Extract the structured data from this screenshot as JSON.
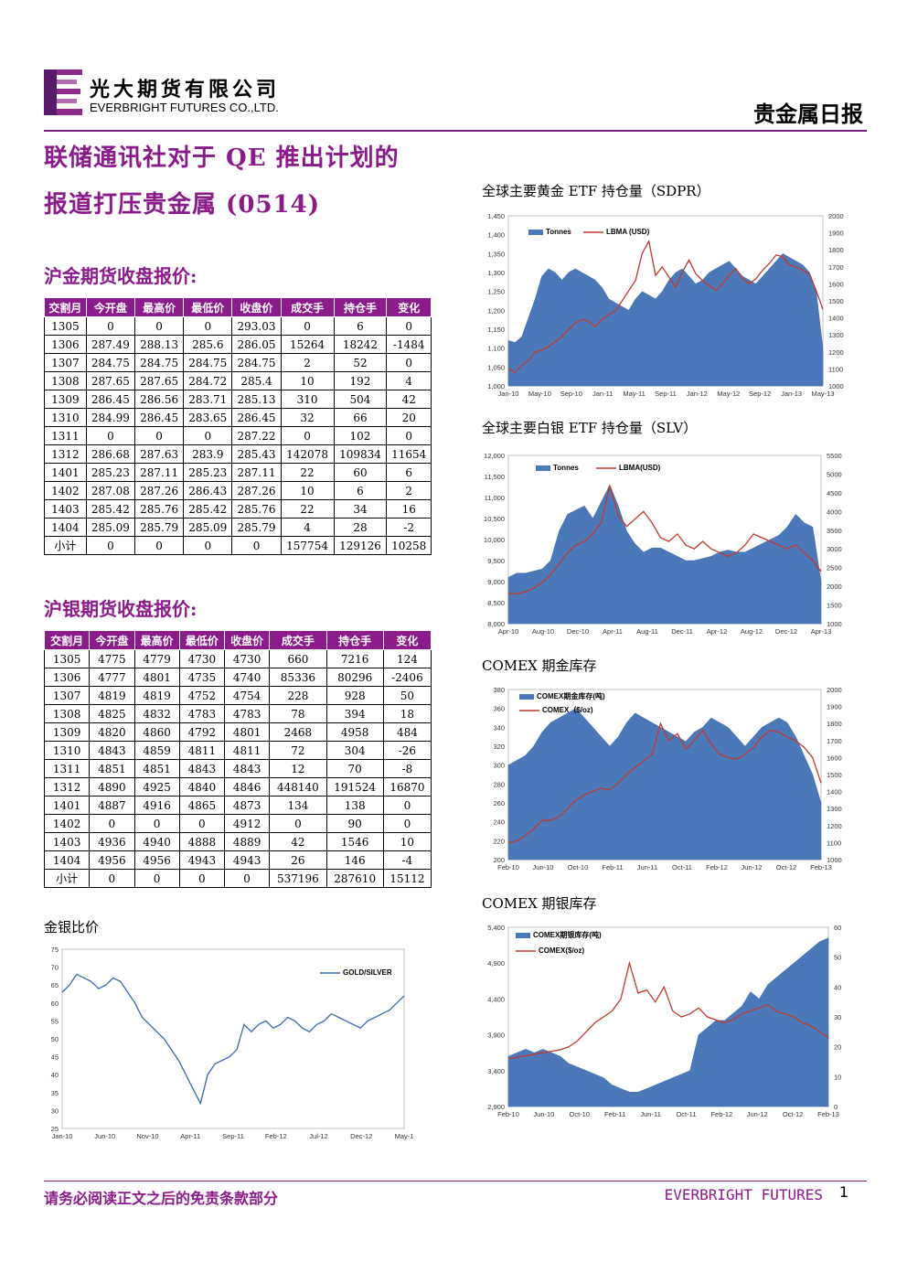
{
  "header": {
    "company_cn": "光大期货有限公司",
    "company_en": "EVERBRIGHT FUTURES CO.,LTD.",
    "report_type": "贵金属日报"
  },
  "title": {
    "line1": "联储通讯社对于 QE 推出计划的",
    "line2": "报道打压贵金属 (0514)"
  },
  "gold_table": {
    "heading": "沪金期货收盘报价:",
    "columns": [
      "交割月",
      "今开盘",
      "最高价",
      "最低价",
      "收盘价",
      "成交手",
      "持仓手",
      "变化"
    ],
    "rows": [
      [
        "1305",
        "0",
        "0",
        "0",
        "293.03",
        "0",
        "6",
        "0"
      ],
      [
        "1306",
        "287.49",
        "288.13",
        "285.6",
        "286.05",
        "15264",
        "18242",
        "-1484"
      ],
      [
        "1307",
        "284.75",
        "284.75",
        "284.75",
        "284.75",
        "2",
        "52",
        "0"
      ],
      [
        "1308",
        "287.65",
        "287.65",
        "284.72",
        "285.4",
        "10",
        "192",
        "4"
      ],
      [
        "1309",
        "286.45",
        "286.56",
        "283.71",
        "285.13",
        "310",
        "504",
        "42"
      ],
      [
        "1310",
        "284.99",
        "286.45",
        "283.65",
        "286.45",
        "32",
        "66",
        "20"
      ],
      [
        "1311",
        "0",
        "0",
        "0",
        "287.22",
        "0",
        "102",
        "0"
      ],
      [
        "1312",
        "286.68",
        "287.63",
        "283.9",
        "285.43",
        "142078",
        "109834",
        "11654"
      ],
      [
        "1401",
        "285.23",
        "287.11",
        "285.23",
        "287.11",
        "22",
        "60",
        "6"
      ],
      [
        "1402",
        "287.08",
        "287.26",
        "286.43",
        "287.26",
        "10",
        "6",
        "2"
      ],
      [
        "1403",
        "285.42",
        "285.76",
        "285.42",
        "285.76",
        "22",
        "34",
        "16"
      ],
      [
        "1404",
        "285.09",
        "285.79",
        "285.09",
        "285.79",
        "4",
        "28",
        "-2"
      ],
      [
        "小计",
        "0",
        "0",
        "0",
        "0",
        "157754",
        "129126",
        "10258"
      ]
    ]
  },
  "silver_table": {
    "heading": "沪银期货收盘报价:",
    "columns": [
      "交割月",
      "今开盘",
      "最高价",
      "最低价",
      "收盘价",
      "成交手",
      "持仓手",
      "变化"
    ],
    "rows": [
      [
        "1305",
        "4775",
        "4779",
        "4730",
        "4730",
        "660",
        "7216",
        "124"
      ],
      [
        "1306",
        "4777",
        "4801",
        "4735",
        "4740",
        "85336",
        "80296",
        "-2406"
      ],
      [
        "1307",
        "4819",
        "4819",
        "4752",
        "4754",
        "228",
        "928",
        "50"
      ],
      [
        "1308",
        "4825",
        "4832",
        "4783",
        "4783",
        "78",
        "394",
        "18"
      ],
      [
        "1309",
        "4820",
        "4860",
        "4792",
        "4801",
        "2468",
        "4958",
        "484"
      ],
      [
        "1310",
        "4843",
        "4859",
        "4811",
        "4811",
        "72",
        "304",
        "-26"
      ],
      [
        "1311",
        "4851",
        "4851",
        "4843",
        "4843",
        "12",
        "70",
        "-8"
      ],
      [
        "1312",
        "4890",
        "4925",
        "4840",
        "4846",
        "448140",
        "191524",
        "16870"
      ],
      [
        "1401",
        "4887",
        "4916",
        "4865",
        "4873",
        "134",
        "138",
        "0"
      ],
      [
        "1402",
        "0",
        "0",
        "0",
        "4912",
        "0",
        "90",
        "0"
      ],
      [
        "1403",
        "4936",
        "4940",
        "4888",
        "4889",
        "42",
        "1546",
        "10"
      ],
      [
        "1404",
        "4956",
        "4956",
        "4943",
        "4943",
        "26",
        "146",
        "-4"
      ],
      [
        "小计",
        "0",
        "0",
        "0",
        "0",
        "537196",
        "287610",
        "15112"
      ]
    ]
  },
  "chart_data": [
    {
      "id": "sdpr",
      "type": "area",
      "title": "全球主要黄金 ETF 持仓量（SDPR）",
      "x_ticks": [
        "Jan-10",
        "May-10",
        "Sep-10",
        "Jan-11",
        "May-11",
        "Sep-11",
        "Jan-12",
        "May-12",
        "Sep-12",
        "Jan-13",
        "May-13"
      ],
      "y_left": [
        1000,
        1050,
        1100,
        1150,
        1200,
        1250,
        1300,
        1350,
        1400,
        1450
      ],
      "y_right": [
        1000,
        1100,
        1200,
        1300,
        1400,
        1500,
        1600,
        1700,
        1800,
        1900,
        2000
      ],
      "series": [
        {
          "name": "Tonnes",
          "axis": "left",
          "values": [
            1120,
            1115,
            1130,
            1180,
            1230,
            1290,
            1310,
            1300,
            1280,
            1300,
            1310,
            1300,
            1290,
            1280,
            1260,
            1230,
            1220,
            1210,
            1200,
            1230,
            1250,
            1240,
            1230,
            1250,
            1280,
            1300,
            1310,
            1290,
            1270,
            1280,
            1300,
            1310,
            1320,
            1330,
            1310,
            1290,
            1280,
            1270,
            1290,
            1310,
            1330,
            1350,
            1340,
            1330,
            1320,
            1300,
            1250,
            1100
          ]
        },
        {
          "name": "LBMA (USD)",
          "axis": "right",
          "values": [
            1100,
            1080,
            1120,
            1150,
            1200,
            1210,
            1230,
            1260,
            1290,
            1330,
            1370,
            1390,
            1380,
            1350,
            1390,
            1420,
            1440,
            1500,
            1560,
            1620,
            1780,
            1850,
            1650,
            1700,
            1640,
            1580,
            1670,
            1740,
            1660,
            1620,
            1590,
            1560,
            1600,
            1650,
            1690,
            1630,
            1600,
            1630,
            1680,
            1720,
            1770,
            1760,
            1710,
            1700,
            1680,
            1660,
            1560,
            1450
          ]
        }
      ]
    },
    {
      "id": "slv",
      "type": "area",
      "title": "全球主要白银 ETF 持仓量（SLV）",
      "x_ticks": [
        "Apr-10",
        "Aug-10",
        "Dec-10",
        "Apr-11",
        "Aug-11",
        "Dec-11",
        "Apr-12",
        "Aug-12",
        "Dec-12",
        "Apr-13"
      ],
      "y_left": [
        8000,
        8500,
        9000,
        9500,
        10000,
        10500,
        11000,
        11500,
        12000
      ],
      "y_right": [
        1000,
        1500,
        2000,
        2500,
        3000,
        3500,
        4000,
        4500,
        5000,
        5500
      ],
      "series": [
        {
          "name": "Tonnes",
          "axis": "left",
          "values": [
            9100,
            9200,
            9200,
            9250,
            9300,
            9500,
            10200,
            10600,
            10700,
            10800,
            10500,
            10900,
            11300,
            10800,
            10200,
            9900,
            9700,
            9800,
            9800,
            9700,
            9600,
            9500,
            9500,
            9550,
            9600,
            9700,
            9750,
            9700,
            9700,
            9800,
            9900,
            10000,
            10100,
            10300,
            10600,
            10400,
            10300,
            9000
          ]
        },
        {
          "name": "LBMA(USD)",
          "axis": "right",
          "values": [
            1800,
            1800,
            1850,
            1950,
            2100,
            2300,
            2600,
            2900,
            3100,
            3200,
            3400,
            3700,
            4700,
            3900,
            3600,
            3800,
            4000,
            3700,
            3300,
            3200,
            3400,
            3100,
            3000,
            3200,
            3000,
            2900,
            2800,
            2900,
            3100,
            3400,
            3300,
            3200,
            3100,
            3000,
            3100,
            2900,
            2700,
            2400
          ]
        }
      ]
    },
    {
      "id": "comex_gold",
      "type": "area",
      "title": "COMEX 期金库存",
      "x_ticks": [
        "Feb-10",
        "Jun-10",
        "Oct-10",
        "Feb-11",
        "Jun-11",
        "Oct-11",
        "Feb-12",
        "Jun-12",
        "Oct-12",
        "Feb-13"
      ],
      "y_left": [
        200,
        220,
        240,
        260,
        280,
        300,
        320,
        340,
        360,
        380
      ],
      "y_right": [
        1000,
        1100,
        1200,
        1300,
        1400,
        1500,
        1600,
        1700,
        1800,
        1900,
        2000
      ],
      "series": [
        {
          "name": "COMEX期金库存(吨)",
          "axis": "left",
          "values": [
            300,
            305,
            310,
            320,
            335,
            345,
            350,
            355,
            360,
            350,
            340,
            330,
            320,
            330,
            345,
            355,
            350,
            345,
            340,
            335,
            330,
            325,
            335,
            340,
            350,
            345,
            340,
            330,
            320,
            330,
            340,
            345,
            350,
            345,
            330,
            310,
            290,
            260
          ]
        },
        {
          "name": "COMEX（$/oz)",
          "axis": "right",
          "values": [
            1100,
            1110,
            1140,
            1180,
            1230,
            1230,
            1250,
            1300,
            1350,
            1380,
            1400,
            1420,
            1410,
            1450,
            1500,
            1540,
            1580,
            1620,
            1800,
            1700,
            1740,
            1650,
            1700,
            1760,
            1680,
            1620,
            1600,
            1590,
            1620,
            1660,
            1720,
            1760,
            1750,
            1720,
            1700,
            1660,
            1600,
            1450
          ]
        }
      ]
    },
    {
      "id": "comex_silver",
      "type": "area",
      "title": "COMEX 期银库存",
      "x_ticks": [
        "Feb-10",
        "Jun-10",
        "Oct-10",
        "Feb-11",
        "Jun-11",
        "Oct-11",
        "Feb-12",
        "Jun-12",
        "Oct-12",
        "Feb-13"
      ],
      "y_left": [
        2900,
        3400,
        3900,
        4400,
        4900,
        5400
      ],
      "y_right": [
        0,
        10,
        20,
        30,
        40,
        50,
        60
      ],
      "series": [
        {
          "name": "COMEX期银库存(吨)",
          "axis": "left",
          "values": [
            3600,
            3650,
            3700,
            3650,
            3700,
            3650,
            3600,
            3500,
            3450,
            3400,
            3350,
            3300,
            3200,
            3150,
            3100,
            3100,
            3150,
            3200,
            3250,
            3300,
            3350,
            3400,
            3900,
            4000,
            4100,
            4100,
            4200,
            4300,
            4500,
            4400,
            4600,
            4700,
            4800,
            4900,
            5000,
            5100,
            5200,
            5250
          ]
        },
        {
          "name": "COMEX($/oz)",
          "axis": "right",
          "values": [
            16,
            16.5,
            17,
            17.5,
            18,
            18.5,
            19,
            20,
            22,
            25,
            28,
            30,
            32,
            36,
            48,
            38,
            39,
            35,
            40,
            32,
            30,
            31,
            33,
            30,
            29,
            28,
            29,
            31,
            32,
            33,
            34,
            32,
            31,
            30,
            28,
            27,
            25,
            23
          ]
        }
      ]
    },
    {
      "id": "gold_silver_ratio",
      "type": "line",
      "title": "金银比价",
      "x_ticks": [
        "Jan-10",
        "Jun-10",
        "Nov-10",
        "Apr-11",
        "Sep-11",
        "Feb-12",
        "Jul-12",
        "Dec-12",
        "May-1"
      ],
      "y_left": [
        25,
        30,
        35,
        40,
        45,
        50,
        55,
        60,
        65,
        70,
        75
      ],
      "series": [
        {
          "name": "GOLD/SILVER",
          "axis": "left",
          "values": [
            63,
            65,
            68,
            67,
            66,
            64,
            65,
            67,
            66,
            63,
            60,
            56,
            54,
            52,
            50,
            47,
            44,
            40,
            36,
            32,
            40,
            43,
            44,
            45,
            47,
            54,
            52,
            54,
            55,
            53,
            54,
            56,
            55,
            53,
            52,
            54,
            55,
            57,
            56,
            55,
            54,
            53,
            55,
            56,
            57,
            58,
            60,
            62
          ]
        }
      ]
    }
  ],
  "footer": {
    "disclaimer": "请务必阅读正文之后的免责条款部分",
    "brand": "EVERBRIGHT FUTURES",
    "page": "1"
  }
}
